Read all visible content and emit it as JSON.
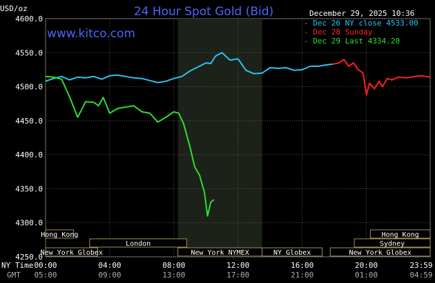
{
  "header": {
    "unit": "USD/oz",
    "title": "24 Hour Spot Gold (Bid)",
    "website": "www.kitco.com",
    "date_time": "December 29, 2025 10:36"
  },
  "legend": [
    {
      "label": "Dec 26 NY close 4533.00",
      "color": "#29c5f6"
    },
    {
      "label": "Dec 28 Sunday",
      "color": "#ff2020"
    },
    {
      "label": "Dec 29 Last 4334.20",
      "color": "#2ee02e"
    }
  ],
  "sessions": [
    {
      "label": "Hong Kong",
      "start": 0.0,
      "end": 1.75
    },
    {
      "label": "London",
      "start": 2.75,
      "end": 8.8
    },
    {
      "label": "New York Globex",
      "start": 0.0,
      "end": 3.25
    },
    {
      "label": "New York NYMEX",
      "start": 8.25,
      "end": 13.5
    },
    {
      "label": "NY Globex",
      "start": 13.5,
      "end": 17.25
    },
    {
      "label": "Hong Kong",
      "start": 20.25,
      "end": 23.98
    },
    {
      "label": "Sydney",
      "start": 19.25,
      "end": 23.98
    },
    {
      "label": "New York Globex",
      "start": 17.75,
      "end": 23.98
    }
  ],
  "time_axis": {
    "ny_label": "NY Time",
    "gmt_label": "GMT",
    "ny_ticks": [
      "00:00",
      "04:00",
      "08:00",
      "12:00",
      "16:00",
      "20:00",
      "23:59"
    ],
    "gmt_ticks": [
      "05:00",
      "09:00",
      "13:00",
      "17:00",
      "21:00",
      "01:00",
      "04:59"
    ]
  },
  "chart_data": {
    "type": "line",
    "title": "24 Hour Spot Gold (Bid)",
    "ylabel": "USD/oz",
    "xlabel": "NY Time",
    "xlim": [
      0,
      23.98
    ],
    "ylim": [
      4250,
      4600
    ],
    "yticks": [
      "4600.0",
      "4550.0",
      "4500.0",
      "4450.0",
      "4400.0",
      "4350.0",
      "4300.0",
      "4250.0"
    ],
    "ytick_values": [
      4600,
      4550,
      4500,
      4450,
      4400,
      4350,
      4300,
      4250
    ],
    "xtick_values": [
      0,
      4,
      8,
      12,
      16,
      20,
      23.98
    ],
    "grid": true,
    "highlight_band": [
      8.25,
      13.5
    ],
    "series": [
      {
        "name": "Dec 26 NY close 4533.00",
        "color": "#29c5f6",
        "x": [
          0,
          0.5,
          1,
          1.5,
          2,
          2.5,
          3,
          3.5,
          4,
          4.5,
          5,
          5.5,
          6,
          6.5,
          7,
          7.5,
          8,
          8.5,
          9,
          9.5,
          10,
          10.3,
          10.6,
          11,
          11.5,
          12,
          12.5,
          13,
          13.5,
          14,
          14.5,
          15,
          15.5,
          16,
          16.5,
          17,
          17.5,
          17.9
        ],
        "y": [
          4508,
          4512,
          4515,
          4510,
          4514,
          4513,
          4515,
          4511,
          4516,
          4517,
          4515,
          4513,
          4512,
          4509,
          4506,
          4508,
          4512,
          4515,
          4523,
          4529,
          4535,
          4534,
          4545,
          4550,
          4539,
          4541,
          4524,
          4519,
          4520,
          4528,
          4527,
          4528,
          4524,
          4525,
          4530,
          4530,
          4532,
          4533
        ]
      },
      {
        "name": "Dec 28 Sunday",
        "color": "#ff2020",
        "x": [
          17.9,
          18.3,
          18.6,
          18.9,
          19.2,
          19.5,
          19.8,
          20.0,
          20.2,
          20.5,
          20.8,
          21.0,
          21.3,
          21.6,
          22.0,
          22.5,
          23.0,
          23.5,
          23.98
        ],
        "y": [
          4533,
          4535,
          4540,
          4530,
          4535,
          4525,
          4520,
          4488,
          4505,
          4497,
          4508,
          4500,
          4512,
          4510,
          4514,
          4513,
          4515,
          4516,
          4514
        ]
      },
      {
        "name": "Dec 29 Last 4334.20",
        "color": "#2ee02e",
        "x": [
          0,
          0.5,
          1,
          1.5,
          2,
          2.5,
          3,
          3.3,
          3.6,
          4,
          4.5,
          5,
          5.5,
          6,
          6.5,
          7,
          7.5,
          8,
          8.3,
          8.6,
          9,
          9.3,
          9.6,
          9.9,
          10.1,
          10.3,
          10.5
        ],
        "y": [
          4515,
          4514,
          4511,
          4485,
          4455,
          4478,
          4477,
          4472,
          4484,
          4461,
          4468,
          4470,
          4472,
          4463,
          4461,
          4448,
          4455,
          4463,
          4461,
          4446,
          4412,
          4382,
          4370,
          4345,
          4310,
          4330,
          4334
        ]
      }
    ]
  }
}
